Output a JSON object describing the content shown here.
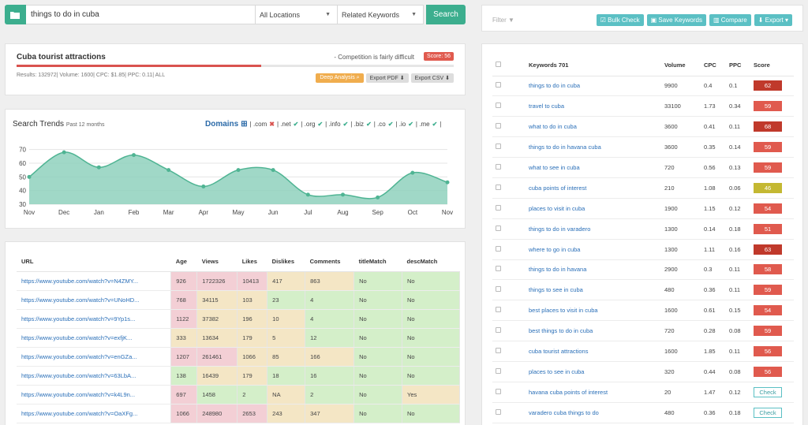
{
  "search": {
    "query": "things to do in cuba",
    "location": "All Locations",
    "mode": "Related Keywords",
    "button": "Search"
  },
  "summary": {
    "title": "Cuba tourist attractions",
    "competition": "- Competition is fairly difficult",
    "score_label": "Score: 56",
    "score_value": 56,
    "stats": "Results: 132972| Volume: 1600| CPC: $1.85| PPC: 0.11| ALL",
    "buttons": {
      "deep": "Deep Analysis",
      "pdf": "Export PDF",
      "csv": "Export CSV"
    }
  },
  "trends": {
    "title": "Search Trends",
    "subtitle": "Past 12 months",
    "domains_label": "Domains",
    "domains": [
      {
        "name": ".com",
        "state": ""
      },
      {
        "name": ".net",
        "state": "no"
      },
      {
        "name": ".org",
        "state": "ok"
      },
      {
        "name": ".info",
        "state": "ok"
      },
      {
        "name": ".biz",
        "state": "ok"
      },
      {
        "name": ".co",
        "state": "ok"
      },
      {
        "name": ".io",
        "state": "ok"
      },
      {
        "name": ".me",
        "state": "ok"
      },
      {
        "name": "",
        "state": "ok"
      }
    ]
  },
  "chart_data": {
    "type": "area",
    "categories": [
      "Nov",
      "Dec",
      "Jan",
      "Feb",
      "Mar",
      "Apr",
      "May",
      "Jun",
      "Jul",
      "Aug",
      "Sep",
      "Oct",
      "Nov"
    ],
    "values": [
      50,
      68,
      57,
      66,
      55,
      43,
      55,
      55,
      37,
      37,
      35,
      53,
      46
    ],
    "yticks": [
      30,
      40,
      50,
      60,
      70
    ],
    "ylim": [
      30,
      75
    ],
    "fill_color": "#8fd1bd",
    "line_color": "#4fb493"
  },
  "url_table": {
    "headers": [
      "URL",
      "Age",
      "Views",
      "Likes",
      "Dislikes",
      "Comments",
      "titleMatch",
      "descMatch"
    ],
    "rows": [
      {
        "cells": [
          "https://www.youtube.com/watch?v=N4ZMY...",
          "926",
          "1722326",
          "10413",
          "417",
          "863",
          "No",
          "No"
        ],
        "colors": [
          "",
          "pink",
          "pink",
          "pink",
          "yel",
          "yel",
          "grn",
          "grn"
        ]
      },
      {
        "cells": [
          "https://www.youtube.com/watch?v=UNoHD...",
          "768",
          "34115",
          "103",
          "23",
          "4",
          "No",
          "No"
        ],
        "colors": [
          "",
          "pink",
          "yel",
          "yel",
          "grn",
          "grn",
          "grn",
          "grn"
        ]
      },
      {
        "cells": [
          "https://www.youtube.com/watch?v=9Yp1s...",
          "1122",
          "37382",
          "196",
          "10",
          "4",
          "No",
          "No"
        ],
        "colors": [
          "",
          "pink",
          "yel",
          "yel",
          "yel",
          "grn",
          "grn",
          "grn"
        ]
      },
      {
        "cells": [
          "https://www.youtube.com/watch?v=exfjK...",
          "333",
          "13634",
          "179",
          "5",
          "12",
          "No",
          "No"
        ],
        "colors": [
          "",
          "yel",
          "yel",
          "yel",
          "yel",
          "grn",
          "grn",
          "grn"
        ]
      },
      {
        "cells": [
          "https://www.youtube.com/watch?v=enGZa...",
          "1207",
          "261461",
          "1066",
          "85",
          "166",
          "No",
          "No"
        ],
        "colors": [
          "",
          "pink",
          "pink",
          "yel",
          "yel",
          "yel",
          "grn",
          "grn"
        ]
      },
      {
        "cells": [
          "https://www.youtube.com/watch?v=63LbA...",
          "138",
          "16439",
          "179",
          "18",
          "16",
          "No",
          "No"
        ],
        "colors": [
          "",
          "grn",
          "yel",
          "yel",
          "grn",
          "grn",
          "grn",
          "grn"
        ]
      },
      {
        "cells": [
          "https://www.youtube.com/watch?v=k4L9n...",
          "697",
          "1458",
          "2",
          "NA",
          "2",
          "No",
          "Yes"
        ],
        "colors": [
          "",
          "pink",
          "grn",
          "grn",
          "yel",
          "grn",
          "grn",
          "yel"
        ]
      },
      {
        "cells": [
          "https://www.youtube.com/watch?v=OaXFg...",
          "1066",
          "248980",
          "2653",
          "243",
          "347",
          "No",
          "No"
        ],
        "colors": [
          "",
          "pink",
          "pink",
          "pink",
          "yel",
          "yel",
          "grn",
          "grn"
        ]
      }
    ]
  },
  "right": {
    "filter": "Filter",
    "buttons": {
      "bulk": "Bulk Check",
      "save": "Save Keywords",
      "compare": "Compare",
      "export": "Export"
    },
    "headers": [
      "",
      "Keywords 701",
      "Volume",
      "CPC",
      "PPC",
      "Score"
    ],
    "score_colors": {
      "red": "#e05a4e",
      "dark": "#c0392b",
      "olive": "#c4b832"
    },
    "rows": [
      {
        "kw": "things to do in cuba",
        "vol": "9900",
        "cpc": "0.4",
        "ppc": "0.1",
        "score": "62",
        "color": "dark"
      },
      {
        "kw": "travel to cuba",
        "vol": "33100",
        "cpc": "1.73",
        "ppc": "0.34",
        "score": "59",
        "color": "red"
      },
      {
        "kw": "what to do in cuba",
        "vol": "3600",
        "cpc": "0.41",
        "ppc": "0.11",
        "score": "68",
        "color": "dark"
      },
      {
        "kw": "things to do in havana cuba",
        "vol": "3600",
        "cpc": "0.35",
        "ppc": "0.14",
        "score": "59",
        "color": "red"
      },
      {
        "kw": "what to see in cuba",
        "vol": "720",
        "cpc": "0.56",
        "ppc": "0.13",
        "score": "59",
        "color": "red"
      },
      {
        "kw": "cuba points of interest",
        "vol": "210",
        "cpc": "1.08",
        "ppc": "0.06",
        "score": "46",
        "color": "olive"
      },
      {
        "kw": "places to visit in cuba",
        "vol": "1900",
        "cpc": "1.15",
        "ppc": "0.12",
        "score": "54",
        "color": "red"
      },
      {
        "kw": "things to do in varadero",
        "vol": "1300",
        "cpc": "0.14",
        "ppc": "0.18",
        "score": "51",
        "color": "red"
      },
      {
        "kw": "where to go in cuba",
        "vol": "1300",
        "cpc": "1.11",
        "ppc": "0.16",
        "score": "63",
        "color": "dark"
      },
      {
        "kw": "things to do in havana",
        "vol": "2900",
        "cpc": "0.3",
        "ppc": "0.11",
        "score": "58",
        "color": "red"
      },
      {
        "kw": "things to see in cuba",
        "vol": "480",
        "cpc": "0.36",
        "ppc": "0.11",
        "score": "59",
        "color": "red"
      },
      {
        "kw": "best places to visit in cuba",
        "vol": "1600",
        "cpc": "0.61",
        "ppc": "0.15",
        "score": "54",
        "color": "red"
      },
      {
        "kw": "best things to do in cuba",
        "vol": "720",
        "cpc": "0.28",
        "ppc": "0.08",
        "score": "59",
        "color": "red"
      },
      {
        "kw": "cuba tourist attractions",
        "vol": "1600",
        "cpc": "1.85",
        "ppc": "0.11",
        "score": "56",
        "color": "red"
      },
      {
        "kw": "places to see in cuba",
        "vol": "320",
        "cpc": "0.44",
        "ppc": "0.08",
        "score": "56",
        "color": "red"
      },
      {
        "kw": "havana cuba points of interest",
        "vol": "20",
        "cpc": "1.47",
        "ppc": "0.12",
        "score": "Check",
        "color": "check"
      },
      {
        "kw": "varadero cuba things to do",
        "vol": "480",
        "cpc": "0.36",
        "ppc": "0.18",
        "score": "Check",
        "color": "check"
      }
    ]
  }
}
